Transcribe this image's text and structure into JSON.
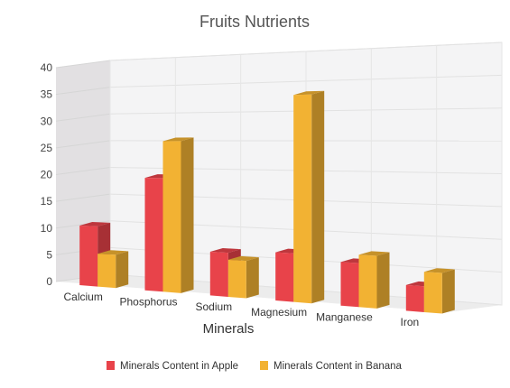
{
  "chart_data": {
    "type": "bar",
    "title": "Fruits Nutrients",
    "xlabel": "Minerals",
    "ylabel": "",
    "ylim": [
      0,
      40
    ],
    "ytick_step": 5,
    "grid": true,
    "view": "3d",
    "legend_position": "bottom",
    "categories": [
      "Calcium",
      "Phosphorus",
      "Sodium",
      "Magnesium",
      "Manganese",
      "Iron"
    ],
    "series": [
      {
        "name": "Minerals Content in Apple",
        "values": [
          11,
          20,
          7.5,
          8,
          7,
          4
        ],
        "color": "#e8434a"
      },
      {
        "name": "Minerals Content in Banana",
        "values": [
          6,
          26.5,
          6.3,
          34,
          8.3,
          6.2
        ],
        "color": "#f2b233"
      }
    ]
  }
}
